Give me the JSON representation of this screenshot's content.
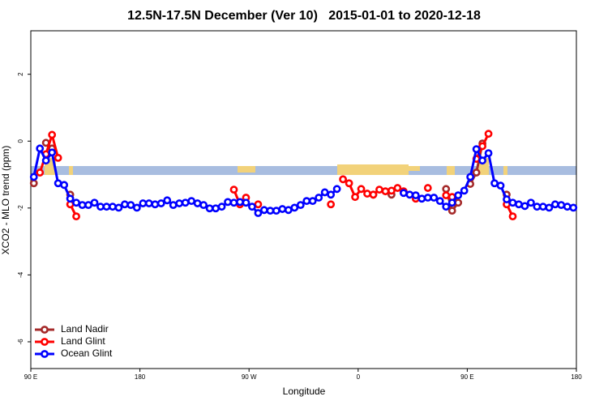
{
  "chart_data": {
    "type": "line",
    "title": "12.5N-17.5N December (Ver 10)   2015-01-01 to 2020-12-18",
    "x_label": "Longitude",
    "y_label": "XCO2 - MLO trend (ppm)",
    "x": [
      92.5,
      97.5,
      102.5,
      107.5,
      112.5,
      117.5,
      122.5,
      127.5,
      132.5,
      137.5,
      142.5,
      147.5,
      152.5,
      157.5,
      162.5,
      167.5,
      172.5,
      177.5,
      182.5,
      187.5,
      192.5,
      197.5,
      202.5,
      207.5,
      212.5,
      217.5,
      222.5,
      227.5,
      232.5,
      237.5,
      242.5,
      247.5,
      252.5,
      257.5,
      262.5,
      267.5,
      272.5,
      277.5,
      282.5,
      287.5,
      292.5,
      297.5,
      302.5,
      307.5,
      312.5,
      317.5,
      322.5,
      327.5,
      332.5,
      337.5,
      342.5,
      347.5,
      352.5,
      357.5,
      362.5,
      367.5,
      372.5,
      377.5,
      382.5,
      387.5,
      392.5,
      397.5,
      402.5,
      407.5,
      412.5,
      417.5,
      422.5,
      427.5,
      432.5,
      437.5,
      442.5,
      447.5,
      452.5,
      457.5,
      462.5,
      467.5,
      472.5,
      477.5,
      482.5,
      487.5,
      492.5,
      497.5,
      502.5,
      507.5,
      512.5,
      517.5,
      522.5,
      527.5,
      532.5,
      537.5
    ],
    "xlim": [
      90,
      540
    ],
    "xticks": [
      {
        "value": 90,
        "label": "90 E"
      },
      180,
      {
        "value": 270,
        "label": "90 W"
      },
      {
        "value": 360,
        "label": "0"
      },
      {
        "value": 450,
        "label": "90 E"
      },
      {
        "value": 540,
        "label": "180"
      }
    ],
    "ylim": [
      -6.8,
      3.3
    ],
    "yticks": [
      2,
      0,
      -2,
      -4,
      -6
    ],
    "legend": "bottom-left",
    "series": [
      {
        "name": "Land Nadir",
        "color": "#a52a2a",
        "values": [
          -1.26,
          null,
          -0.05,
          -0.22,
          null,
          null,
          -1.6,
          null,
          null,
          null,
          null,
          null,
          null,
          null,
          null,
          null,
          null,
          null,
          null,
          null,
          null,
          null,
          null,
          null,
          null,
          null,
          null,
          null,
          null,
          null,
          null,
          null,
          null,
          null,
          null,
          null,
          null,
          null,
          null,
          null,
          null,
          null,
          null,
          null,
          null,
          null,
          null,
          null,
          null,
          null,
          null,
          null,
          null,
          null,
          null,
          null,
          -1.6,
          null,
          null,
          -1.6,
          null,
          null,
          null,
          null,
          null,
          null,
          null,
          null,
          -1.43,
          -2.08,
          -1.84,
          null,
          -1.28,
          -0.94,
          -0.07,
          null,
          null,
          null,
          -1.6,
          null,
          null,
          null,
          null,
          null,
          null,
          null,
          null,
          null,
          null,
          null
        ]
      },
      {
        "name": "Land Glint",
        "color": "#ff0000",
        "values": [
          null,
          -0.94,
          -0.39,
          0.19,
          -0.5,
          null,
          -1.89,
          -2.25,
          null,
          null,
          null,
          null,
          null,
          null,
          null,
          null,
          null,
          null,
          null,
          null,
          null,
          null,
          null,
          null,
          null,
          null,
          null,
          null,
          null,
          null,
          null,
          null,
          null,
          -1.45,
          -1.89,
          -1.69,
          null,
          -1.89,
          null,
          null,
          null,
          null,
          null,
          null,
          null,
          null,
          null,
          null,
          null,
          -1.89,
          null,
          -1.14,
          -1.26,
          -1.67,
          -1.43,
          -1.57,
          -1.6,
          -1.45,
          -1.5,
          -1.48,
          -1.4,
          -1.5,
          null,
          -1.72,
          null,
          -1.4,
          null,
          null,
          -1.62,
          -1.67,
          null,
          null,
          null,
          -0.53,
          -0.15,
          0.22,
          null,
          null,
          -1.89,
          -2.25,
          null,
          null,
          null,
          null,
          null,
          null,
          null,
          null,
          null,
          null
        ]
      },
      {
        "name": "Ocean Glint",
        "color": "#0000ff",
        "values": [
          -1.07,
          -0.22,
          -0.58,
          -0.34,
          -1.26,
          -1.31,
          -1.72,
          -1.84,
          -1.91,
          -1.91,
          -1.84,
          -1.96,
          -1.96,
          -1.96,
          -1.99,
          -1.89,
          -1.91,
          -1.99,
          -1.86,
          -1.86,
          -1.89,
          -1.86,
          -1.77,
          -1.91,
          -1.86,
          -1.84,
          -1.79,
          -1.86,
          -1.91,
          -2.01,
          -2.01,
          -1.96,
          -1.82,
          -1.84,
          -1.82,
          -1.84,
          -1.96,
          -2.15,
          -2.06,
          -2.08,
          -2.08,
          -2.03,
          -2.06,
          -1.99,
          -1.91,
          -1.79,
          -1.79,
          -1.69,
          -1.53,
          -1.6,
          -1.43,
          null,
          null,
          null,
          null,
          null,
          null,
          null,
          null,
          null,
          null,
          -1.55,
          -1.6,
          -1.62,
          -1.72,
          -1.69,
          -1.69,
          -1.79,
          -1.96,
          -1.84,
          -1.62,
          -1.48,
          -1.07,
          -0.24,
          -0.58,
          -0.36,
          -1.26,
          -1.33,
          -1.74,
          -1.84,
          -1.89,
          -1.94,
          -1.84,
          -1.96,
          -1.96,
          -1.99,
          -1.89,
          -1.91,
          -1.96,
          -1.99
        ]
      }
    ]
  }
}
